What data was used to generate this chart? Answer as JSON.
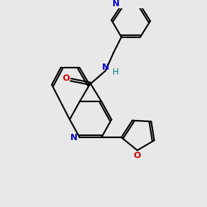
{
  "background_color": "#e8e8e8",
  "bond_color": "#000000",
  "N_color": "#0000cc",
  "O_color": "#cc0000",
  "H_color": "#008080",
  "line_width": 1.6,
  "figsize": [
    3.0,
    3.0
  ],
  "dpi": 100,
  "xlim": [
    0,
    10
  ],
  "ylim": [
    0,
    10
  ]
}
